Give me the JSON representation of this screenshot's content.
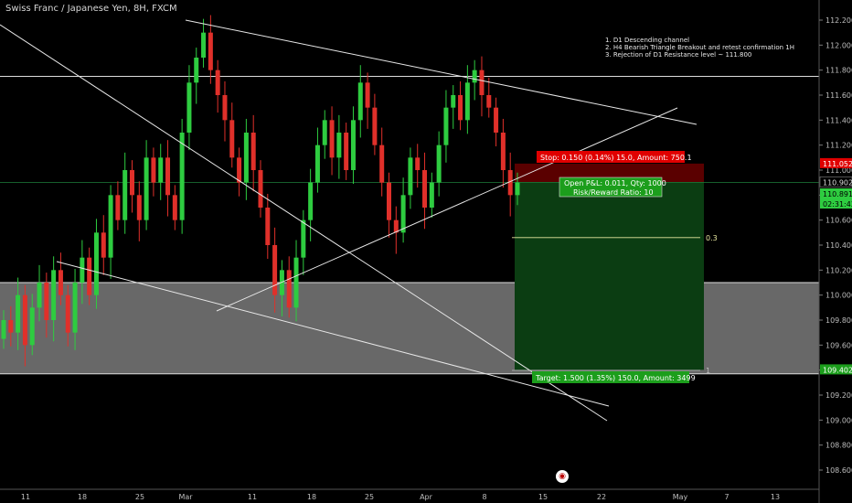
{
  "header": {
    "title": "Swiss Franc / Japanese Yen, 8H, FXCM"
  },
  "notes": [
    "1. D1 Descending channel",
    "2. H4 Bearish Triangle Breakout and retest confirmation 1H",
    "3. Rejection of D1 Resistance level ~ 111.800"
  ],
  "position": {
    "stop_label": "Stop: 0.150 (0.14%) 15.0, Amount: 750.1",
    "pnl_label": "Open P&L: 0.011, Qty: 1000",
    "rr_label": "Risk/Reward Ratio: 10",
    "target_label": "Target: 1.500 (1.35%) 150.0, Amount: 3499",
    "entry": 110.902,
    "stop": 111.052,
    "target": 109.402
  },
  "price_tags": {
    "stop": "111.052",
    "entry": "110.902",
    "current": "110.891",
    "countdown": "02:31:42",
    "target": "109.402"
  },
  "fib_labels": {
    "level_03": "0.3",
    "level_1": "1"
  },
  "colors": {
    "background": "#000000",
    "bull": "#2ecc40",
    "bear": "#e0302a",
    "zone": "#7a7a7a",
    "stop_fill": "#5a0000",
    "target_fill": "#0b3d12",
    "stop_tag": "#e00000",
    "target_tag": "#1c9e1c"
  },
  "chart_data": {
    "type": "candlestick",
    "ylim": [
      108.5,
      112.3
    ],
    "y_ticks": [
      "108.600",
      "108.800",
      "109.000",
      "109.200",
      "109.400",
      "109.600",
      "109.800",
      "110.000",
      "110.200",
      "110.400",
      "110.600",
      "110.800",
      "111.000",
      "111.200",
      "111.400",
      "111.600",
      "111.800",
      "112.000",
      "112.200"
    ],
    "x_ticks": [
      "11",
      "18",
      "25",
      "Mar",
      "11",
      "18",
      "25",
      "Apr",
      "8",
      "15",
      "22",
      "May",
      "7",
      "13"
    ],
    "resistance": 111.75,
    "zone": [
      109.37,
      110.1
    ],
    "fib_03_level": 110.46,
    "series_close": [
      109.8,
      109.7,
      110.0,
      109.6,
      109.9,
      110.1,
      109.8,
      110.2,
      110.0,
      109.7,
      110.1,
      110.3,
      110.0,
      110.5,
      110.3,
      110.8,
      110.6,
      111.0,
      110.8,
      110.6,
      111.1,
      110.9,
      111.1,
      110.8,
      110.6,
      111.3,
      111.7,
      111.9,
      112.1,
      111.8,
      111.6,
      111.4,
      111.1,
      110.9,
      111.3,
      111.0,
      110.7,
      110.4,
      110.0,
      110.2,
      109.9,
      110.3,
      110.6,
      110.9,
      111.2,
      111.4,
      111.1,
      111.3,
      111.0,
      111.4,
      111.7,
      111.5,
      111.2,
      110.9,
      110.6,
      110.5,
      110.8,
      111.1,
      111.0,
      110.7,
      110.9,
      111.2,
      111.5,
      111.6,
      111.4,
      111.7,
      111.8,
      111.6,
      111.5,
      111.3,
      111.0,
      110.8,
      110.9
    ]
  }
}
